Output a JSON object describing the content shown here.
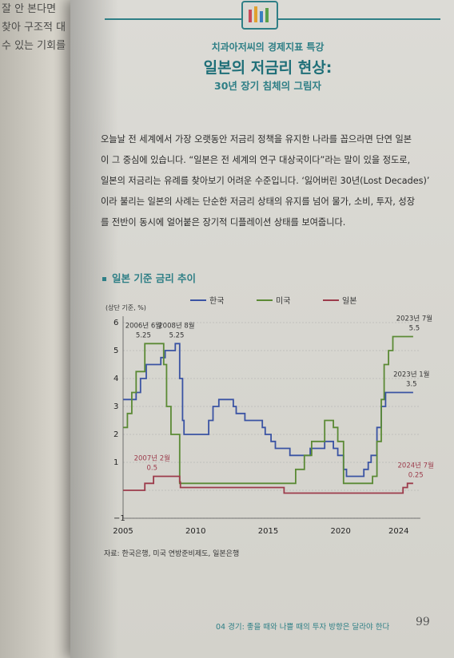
{
  "header": {
    "series": "치과아저씨의 경제지표 특강",
    "title": "일본의 저금리 현상:",
    "subtitle": "30년 장기 침체의 그림자"
  },
  "body": {
    "lines": [
      "오늘날 전 세계에서 가장 오랫동안 저금리 정책을 유지한 나라를 꼽으라면 단연 일본",
      "이 그 중심에 있습니다. “일본은 전 세계의 연구 대상국이다”라는 말이 있을 정도로,",
      "일본의 저금리는 유례를 찾아보기 어려운 수준입니다. ‘잃어버린 30년(Lost Decades)’",
      "이라 불리는 일본의 사례는 단순한 저금리 상태의 유지를 넘어 물가, 소비, 투자, 성장",
      "를 전반이 동시에 얼어붙은 장기적 디플레이션 상태를 보여줍니다."
    ]
  },
  "section_title": "일본 기준 금리 추이",
  "source": "자료: 한국은행, 미국 연방준비제도, 일본은행",
  "footer": {
    "text": "04 경기: 좋을 때와 나쁠 때의 투자 방향은 달라야 한다",
    "page": "99"
  },
  "left_page_lines": [
    "잘 안 본다면",
    "찾아 구조적 대",
    "수 있는 기회를"
  ],
  "colors": {
    "korea": "#3a53a3",
    "us": "#5b8a35",
    "japan": "#9c3b4b",
    "accent": "#2f7f86"
  },
  "chart_data": {
    "type": "line",
    "ylabel": "(상단 기준, %)",
    "ylim": [
      -1,
      6
    ],
    "xlim": [
      2005,
      2025.5
    ],
    "x_ticks": [
      2005,
      2010,
      2015,
      2020,
      2024
    ],
    "y_ticks": [
      -1,
      1,
      2,
      3,
      4,
      5,
      6
    ],
    "grid": true,
    "legend_position": "top",
    "series": [
      {
        "name": "한국",
        "points": [
          [
            2005,
            3.25
          ],
          [
            2005.8,
            3.25
          ],
          [
            2005.9,
            3.5
          ],
          [
            2006.2,
            4.0
          ],
          [
            2006.6,
            4.5
          ],
          [
            2007.6,
            4.75
          ],
          [
            2007.9,
            5.0
          ],
          [
            2008.6,
            5.25
          ],
          [
            2008.9,
            4.0
          ],
          [
            2009.1,
            2.5
          ],
          [
            2009.2,
            2.0
          ],
          [
            2010.5,
            2.0
          ],
          [
            2010.9,
            2.5
          ],
          [
            2011.2,
            3.0
          ],
          [
            2011.6,
            3.25
          ],
          [
            2012.6,
            3.0
          ],
          [
            2012.8,
            2.75
          ],
          [
            2013.4,
            2.5
          ],
          [
            2014.6,
            2.25
          ],
          [
            2014.8,
            2.0
          ],
          [
            2015.2,
            1.75
          ],
          [
            2015.5,
            1.5
          ],
          [
            2016.5,
            1.25
          ],
          [
            2017.9,
            1.5
          ],
          [
            2018.9,
            1.75
          ],
          [
            2019.5,
            1.5
          ],
          [
            2019.8,
            1.25
          ],
          [
            2020.2,
            0.75
          ],
          [
            2020.4,
            0.5
          ],
          [
            2021.6,
            0.75
          ],
          [
            2021.9,
            1.0
          ],
          [
            2022.1,
            1.25
          ],
          [
            2022.5,
            2.25
          ],
          [
            2022.8,
            3.0
          ],
          [
            2023.1,
            3.5
          ],
          [
            2025.0,
            3.5
          ]
        ]
      },
      {
        "name": "미국",
        "points": [
          [
            2005,
            2.25
          ],
          [
            2005.3,
            2.75
          ],
          [
            2005.6,
            3.5
          ],
          [
            2005.9,
            4.25
          ],
          [
            2006.5,
            5.25
          ],
          [
            2007.6,
            5.25
          ],
          [
            2007.8,
            4.5
          ],
          [
            2008.0,
            3.0
          ],
          [
            2008.3,
            2.0
          ],
          [
            2008.9,
            0.25
          ],
          [
            2015.9,
            0.25
          ],
          [
            2016.9,
            0.75
          ],
          [
            2017.5,
            1.25
          ],
          [
            2018.0,
            1.75
          ],
          [
            2018.9,
            2.5
          ],
          [
            2019.5,
            2.25
          ],
          [
            2019.8,
            1.75
          ],
          [
            2020.2,
            0.25
          ],
          [
            2022.2,
            0.5
          ],
          [
            2022.5,
            1.75
          ],
          [
            2022.8,
            3.25
          ],
          [
            2023.0,
            4.5
          ],
          [
            2023.3,
            5.0
          ],
          [
            2023.6,
            5.5
          ],
          [
            2025.0,
            5.5
          ]
        ]
      },
      {
        "name": "일본",
        "points": [
          [
            2005,
            0.0
          ],
          [
            2006.5,
            0.25
          ],
          [
            2007.1,
            0.5
          ],
          [
            2008.8,
            0.5
          ],
          [
            2008.9,
            0.3
          ],
          [
            2008.95,
            0.1
          ],
          [
            2016.0,
            0.1
          ],
          [
            2016.1,
            -0.1
          ],
          [
            2024.2,
            -0.1
          ],
          [
            2024.3,
            0.1
          ],
          [
            2024.6,
            0.25
          ],
          [
            2025.0,
            0.25
          ]
        ]
      }
    ],
    "annotations": [
      {
        "series": "미국",
        "date": "2006년 6월",
        "value": "5.25"
      },
      {
        "series": "한국",
        "date": "2008년 8월",
        "value": "5.25"
      },
      {
        "series": "일본",
        "date": "2007년 2월",
        "value": "0.5"
      },
      {
        "series": "미국",
        "date": "2023년 7월",
        "value": "5.5"
      },
      {
        "series": "한국",
        "date": "2023년 1월",
        "value": "3.5"
      },
      {
        "series": "일본",
        "date": "2024년 7월",
        "value": "0.25"
      }
    ]
  }
}
